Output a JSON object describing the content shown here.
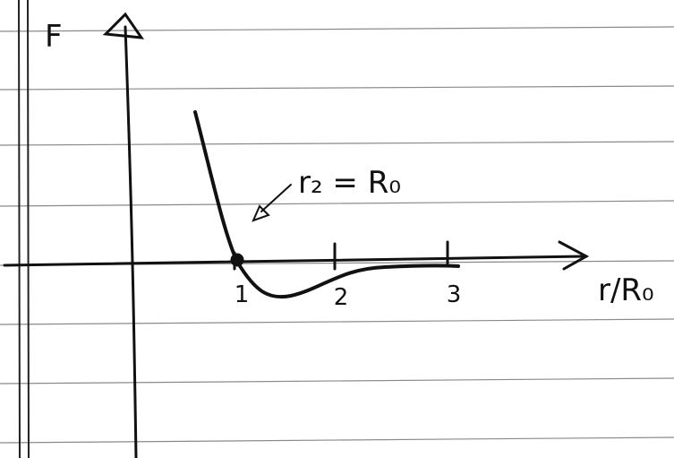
{
  "axes": {
    "y_label": "F",
    "x_label": "r/R₀"
  },
  "ticks": [
    1,
    2,
    3
  ],
  "annotation": "r₂ = R₀"
}
